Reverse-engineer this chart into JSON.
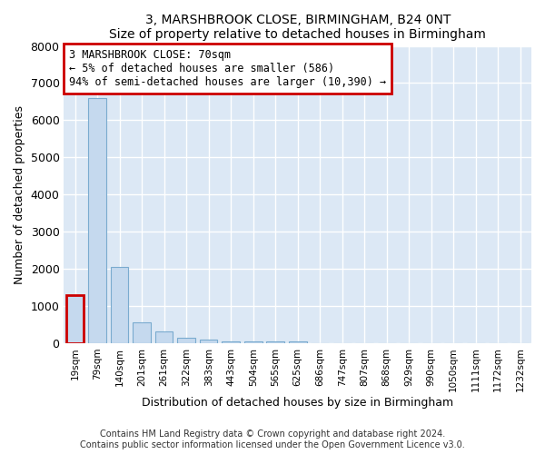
{
  "title1": "3, MARSHBROOK CLOSE, BIRMINGHAM, B24 0NT",
  "title2": "Size of property relative to detached houses in Birmingham",
  "xlabel": "Distribution of detached houses by size in Birmingham",
  "ylabel": "Number of detached properties",
  "categories": [
    "19sqm",
    "79sqm",
    "140sqm",
    "201sqm",
    "261sqm",
    "322sqm",
    "383sqm",
    "443sqm",
    "504sqm",
    "565sqm",
    "625sqm",
    "686sqm",
    "747sqm",
    "807sqm",
    "868sqm",
    "929sqm",
    "990sqm",
    "1050sqm",
    "1111sqm",
    "1172sqm",
    "1232sqm"
  ],
  "values": [
    1300,
    6600,
    2050,
    550,
    320,
    150,
    100,
    55,
    45,
    40,
    40,
    0,
    0,
    0,
    0,
    0,
    0,
    0,
    0,
    0,
    0
  ],
  "bar_color": "#c5d9ee",
  "bar_edge_color": "#7aabcf",
  "highlight_edge_color": "#cc0000",
  "bg_color": "#dce8f5",
  "ylim_max": 8000,
  "yticks": [
    0,
    1000,
    2000,
    3000,
    4000,
    5000,
    6000,
    7000,
    8000
  ],
  "annotation_line1": "3 MARSHBROOK CLOSE: 70sqm",
  "annotation_line2": "← 5% of detached houses are smaller (586)",
  "annotation_line3": "94% of semi-detached houses are larger (10,390) →",
  "footer1": "Contains HM Land Registry data © Crown copyright and database right 2024.",
  "footer2": "Contains public sector information licensed under the Open Government Licence v3.0."
}
